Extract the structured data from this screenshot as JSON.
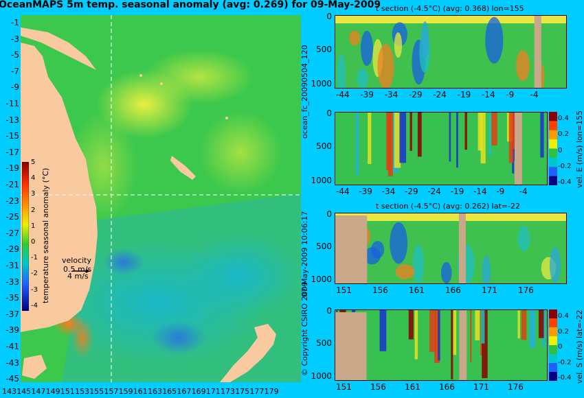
{
  "map": {
    "title": "OceanMAPS 5m temp. seasonal anomaly (avg: 0.269) for 09-May-2009",
    "y_ticks": [
      "-1",
      "-3",
      "-5",
      "-7",
      "-9",
      "-11",
      "-13",
      "-15",
      "-17",
      "-19",
      "-21",
      "-23",
      "-25",
      "-27",
      "-29",
      "-31",
      "-33",
      "-35",
      "-37",
      "-39",
      "-41",
      "-43",
      "-45"
    ],
    "x_ticks": [
      "143",
      "145",
      "147",
      "149",
      "151",
      "153",
      "155",
      "157",
      "159",
      "161",
      "163",
      "165",
      "167",
      "169",
      "171",
      "173",
      "175",
      "177",
      "179"
    ],
    "colorbar_label": "temperature seasonal anomaly (°C)",
    "colorbar_ticks": [
      "5",
      "4",
      "3",
      "2",
      "1",
      "0",
      "-1",
      "-2",
      "-3",
      "-4"
    ],
    "velocity_label": "velocity",
    "velocity_scale_1": "0.5 m/s",
    "velocity_scale_2": "4 m/s",
    "colors": {
      "land": "#f9c9a0",
      "ocean_base": "#39c84a"
    }
  },
  "side": {
    "run_label": "ocean_fc_20090504_120",
    "date_label": "07-May-2009 10:06:17",
    "copyright": "© Copyright CSIRO 2009"
  },
  "panels": [
    {
      "title": "t section (-4.5°C) (avg: 0.368) lon=155",
      "x_ticks": [
        "-44",
        "-39",
        "-34",
        "-29",
        "-24",
        "-19",
        "-14",
        "-9",
        "-4"
      ],
      "y_ticks": [
        "0",
        "500",
        "1000"
      ],
      "side_label": "",
      "colorbar_ticks": []
    },
    {
      "title": "",
      "x_ticks": [
        "-44",
        "-39",
        "-34",
        "-29",
        "-24",
        "-19",
        "-14",
        "-9",
        "-4"
      ],
      "y_ticks": [
        "0",
        "500",
        "1000"
      ],
      "side_label": "vel. E (m/s) lon=155",
      "colorbar_ticks": [
        "0.4",
        "0.2",
        "0",
        "-0.2",
        "-0.4"
      ]
    },
    {
      "title": "t section (-4.5°C) (avg: 0.262) lat=-22",
      "x_ticks": [
        "151",
        "156",
        "161",
        "166",
        "171",
        "176"
      ],
      "y_ticks": [
        "0",
        "500",
        "1000"
      ],
      "side_label": "",
      "colorbar_ticks": []
    },
    {
      "title": "",
      "x_ticks": [
        "151",
        "156",
        "161",
        "166",
        "171",
        "176"
      ],
      "y_ticks": [
        "0",
        "500",
        "1000"
      ],
      "side_label": "vel. S (m/s) lat=-22",
      "colorbar_ticks": [
        "0.4",
        "0.2",
        "0",
        "-0.2",
        "-0.4"
      ]
    }
  ],
  "chart_data": [
    {
      "type": "heatmap",
      "title": "OceanMAPS 5m temp. seasonal anomaly (avg: 0.269) for 09-May-2009",
      "xlabel": "",
      "ylabel": "",
      "xlim": [
        142,
        180
      ],
      "ylim": [
        -45,
        0
      ],
      "colorbar": {
        "label": "temperature seasonal anomaly (°C)",
        "range": [
          -4,
          5
        ]
      },
      "crosshair": {
        "lon": 155,
        "lat": -22
      }
    },
    {
      "type": "heatmap",
      "title": "t section (-4.5°C) (avg: 0.368) lon=155",
      "xlim": [
        -45,
        -1
      ],
      "ylim": [
        1050,
        0
      ],
      "x_ticks": [
        -44,
        -39,
        -34,
        -29,
        -24,
        -19,
        -14,
        -9,
        -4
      ],
      "y_ticks": [
        0,
        500,
        1000
      ]
    },
    {
      "type": "heatmap",
      "title": "",
      "xlim": [
        -45,
        -1
      ],
      "ylim": [
        1050,
        0
      ],
      "colorbar": {
        "label": "vel. E (m/s) lon=155",
        "range": [
          -0.4,
          0.4
        ]
      }
    },
    {
      "type": "heatmap",
      "title": "t section (-4.5°C) (avg: 0.262) lat=-22",
      "xlim": [
        150,
        180
      ],
      "ylim": [
        1050,
        0
      ],
      "x_ticks": [
        151,
        156,
        161,
        166,
        171,
        176
      ],
      "y_ticks": [
        0,
        500,
        1000
      ]
    },
    {
      "type": "heatmap",
      "title": "",
      "xlim": [
        150,
        180
      ],
      "ylim": [
        1050,
        0
      ],
      "colorbar": {
        "label": "vel. S (m/s) lat=-22",
        "range": [
          -0.4,
          0.4
        ]
      }
    }
  ]
}
